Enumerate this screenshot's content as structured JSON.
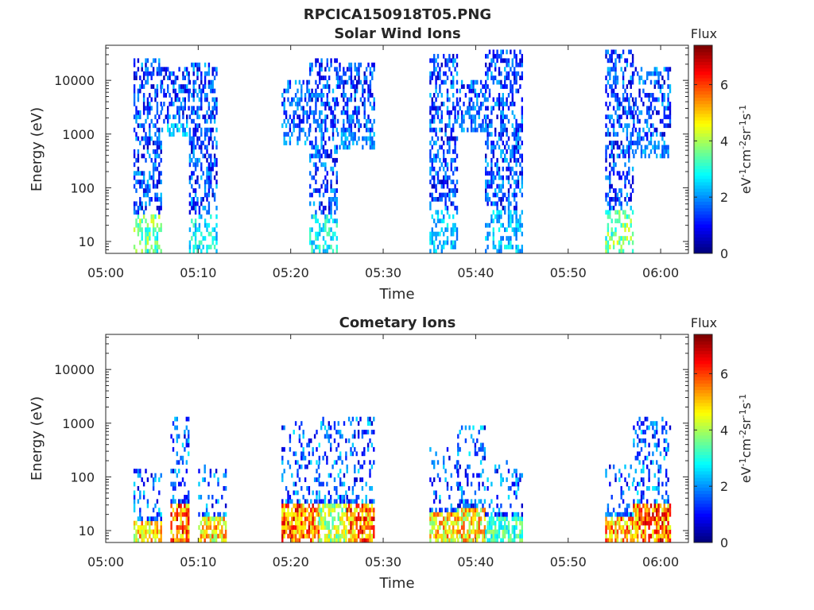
{
  "figure_title": "RPCICA150918T05.PNG",
  "chart_data": [
    {
      "type": "heatmap",
      "title": "Solar Wind Ions",
      "xlabel": "Time",
      "ylabel": "Energy (eV)",
      "y_scale": "log",
      "x_range": [
        "05:00",
        "06:03"
      ],
      "y_range": [
        6,
        45000
      ],
      "x_ticks": [
        "05:00",
        "05:10",
        "05:20",
        "05:30",
        "05:40",
        "05:50",
        "06:00"
      ],
      "y_ticks": [
        "10",
        "100",
        "1000",
        "10000"
      ],
      "colorbar": {
        "title": "Flux",
        "label_base": "eV",
        "label_sup1": "-1",
        "label_mid1": "cm",
        "label_sup2": "-2",
        "label_mid2": "sr",
        "label_sup3": "-1",
        "label_mid3": "s",
        "label_sup4": "-1",
        "range": [
          0,
          7.4
        ],
        "ticks": [
          "0",
          "2",
          "4",
          "6"
        ],
        "colormap": "jet"
      },
      "bursts": [
        {
          "time_range": [
            "05:03",
            "05:06"
          ],
          "energy_range": [
            6,
            25000
          ],
          "peak_flux": 4.5
        },
        {
          "time_range": [
            "05:06",
            "05:09"
          ],
          "energy_range": [
            800,
            15000
          ],
          "peak_flux": 3.0
        },
        {
          "time_range": [
            "05:09",
            "05:12"
          ],
          "energy_range": [
            6,
            20000
          ],
          "peak_flux": 3.5
        },
        {
          "time_range": [
            "05:19",
            "05:22"
          ],
          "energy_range": [
            600,
            10000
          ],
          "peak_flux": 2.5
        },
        {
          "time_range": [
            "05:22",
            "05:25"
          ],
          "energy_range": [
            6,
            25000
          ],
          "peak_flux": 3.5
        },
        {
          "time_range": [
            "05:25",
            "05:29"
          ],
          "energy_range": [
            500,
            20000
          ],
          "peak_flux": 2.5
        },
        {
          "time_range": [
            "05:35",
            "05:38"
          ],
          "energy_range": [
            6,
            30000
          ],
          "peak_flux": 3.0
        },
        {
          "time_range": [
            "05:38",
            "05:41"
          ],
          "energy_range": [
            1000,
            10000
          ],
          "peak_flux": 2.5
        },
        {
          "time_range": [
            "05:41",
            "05:45"
          ],
          "energy_range": [
            6,
            35000
          ],
          "peak_flux": 3.0
        },
        {
          "time_range": [
            "05:54",
            "05:57"
          ],
          "energy_range": [
            6,
            35000
          ],
          "peak_flux": 4.5
        },
        {
          "time_range": [
            "05:57",
            "06:01"
          ],
          "energy_range": [
            300,
            15000
          ],
          "peak_flux": 2.5
        }
      ]
    },
    {
      "type": "heatmap",
      "title": "Cometary Ions",
      "xlabel": "Time",
      "ylabel": "Energy (eV)",
      "y_scale": "log",
      "x_range": [
        "05:00",
        "06:03"
      ],
      "y_range": [
        6,
        45000
      ],
      "x_ticks": [
        "05:00",
        "05:10",
        "05:20",
        "05:30",
        "05:40",
        "05:50",
        "06:00"
      ],
      "y_ticks": [
        "10",
        "100",
        "1000",
        "10000"
      ],
      "colorbar": {
        "title": "Flux",
        "label_base": "eV",
        "label_sup1": "-1",
        "label_mid1": "cm",
        "label_sup2": "-2",
        "label_mid2": "sr",
        "label_sup3": "-1",
        "label_mid3": "s",
        "label_sup4": "-1",
        "range": [
          0,
          7.4
        ],
        "ticks": [
          "0",
          "2",
          "4",
          "6"
        ],
        "colormap": "jet"
      },
      "bursts": [
        {
          "time_range": [
            "05:03",
            "05:06"
          ],
          "energy_range": [
            6,
            120
          ],
          "peak_flux": 6.0
        },
        {
          "time_range": [
            "05:07",
            "05:09"
          ],
          "energy_range": [
            6,
            1200
          ],
          "peak_flux": 7.0
        },
        {
          "time_range": [
            "05:10",
            "05:13"
          ],
          "energy_range": [
            6,
            150
          ],
          "peak_flux": 6.0
        },
        {
          "time_range": [
            "05:19",
            "05:23"
          ],
          "energy_range": [
            6,
            1000
          ],
          "peak_flux": 7.0
        },
        {
          "time_range": [
            "05:23",
            "05:26"
          ],
          "energy_range": [
            6,
            1200
          ],
          "peak_flux": 5.0
        },
        {
          "time_range": [
            "05:26",
            "05:29"
          ],
          "energy_range": [
            6,
            1200
          ],
          "peak_flux": 7.0
        },
        {
          "time_range": [
            "05:35",
            "05:38"
          ],
          "energy_range": [
            6,
            300
          ],
          "peak_flux": 6.0
        },
        {
          "time_range": [
            "05:38",
            "05:41"
          ],
          "energy_range": [
            6,
            800
          ],
          "peak_flux": 6.0
        },
        {
          "time_range": [
            "05:41",
            "05:45"
          ],
          "energy_range": [
            6,
            200
          ],
          "peak_flux": 4.0
        },
        {
          "time_range": [
            "05:54",
            "05:57"
          ],
          "energy_range": [
            6,
            150
          ],
          "peak_flux": 6.5
        },
        {
          "time_range": [
            "05:57",
            "06:01"
          ],
          "energy_range": [
            6,
            1200
          ],
          "peak_flux": 7.0
        }
      ]
    }
  ]
}
